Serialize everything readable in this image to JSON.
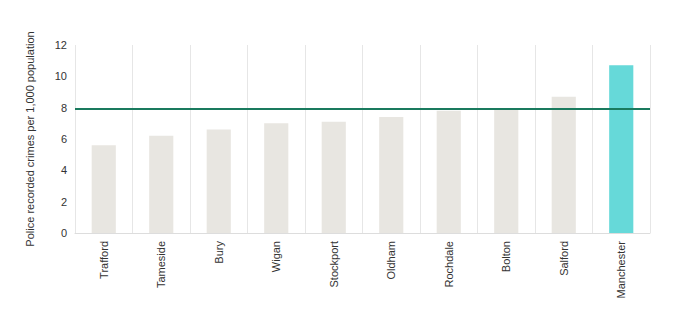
{
  "chart_data": {
    "type": "bar",
    "y_label": "Police recorded crimes per 1,000 population",
    "categories": [
      "Trafford",
      "Tameside",
      "Bury",
      "Wigan",
      "Stockport",
      "Oldham",
      "Rochdale",
      "Bolton",
      "Salford",
      "Manchester"
    ],
    "values": [
      5.6,
      6.2,
      6.6,
      7.0,
      7.1,
      7.4,
      7.8,
      7.9,
      8.7,
      10.7
    ],
    "colors": [
      "#e8e6e1",
      "#e8e6e1",
      "#e8e6e1",
      "#e8e6e1",
      "#e8e6e1",
      "#e8e6e1",
      "#e8e6e1",
      "#e8e6e1",
      "#e8e6e1",
      "#66d9d9"
    ],
    "reference_line": {
      "value": 7.9,
      "color": "#1a7a5e"
    },
    "ylim": [
      0,
      12
    ],
    "yticks": [
      0,
      2,
      4,
      6,
      8,
      10,
      12
    ],
    "grid": true
  }
}
